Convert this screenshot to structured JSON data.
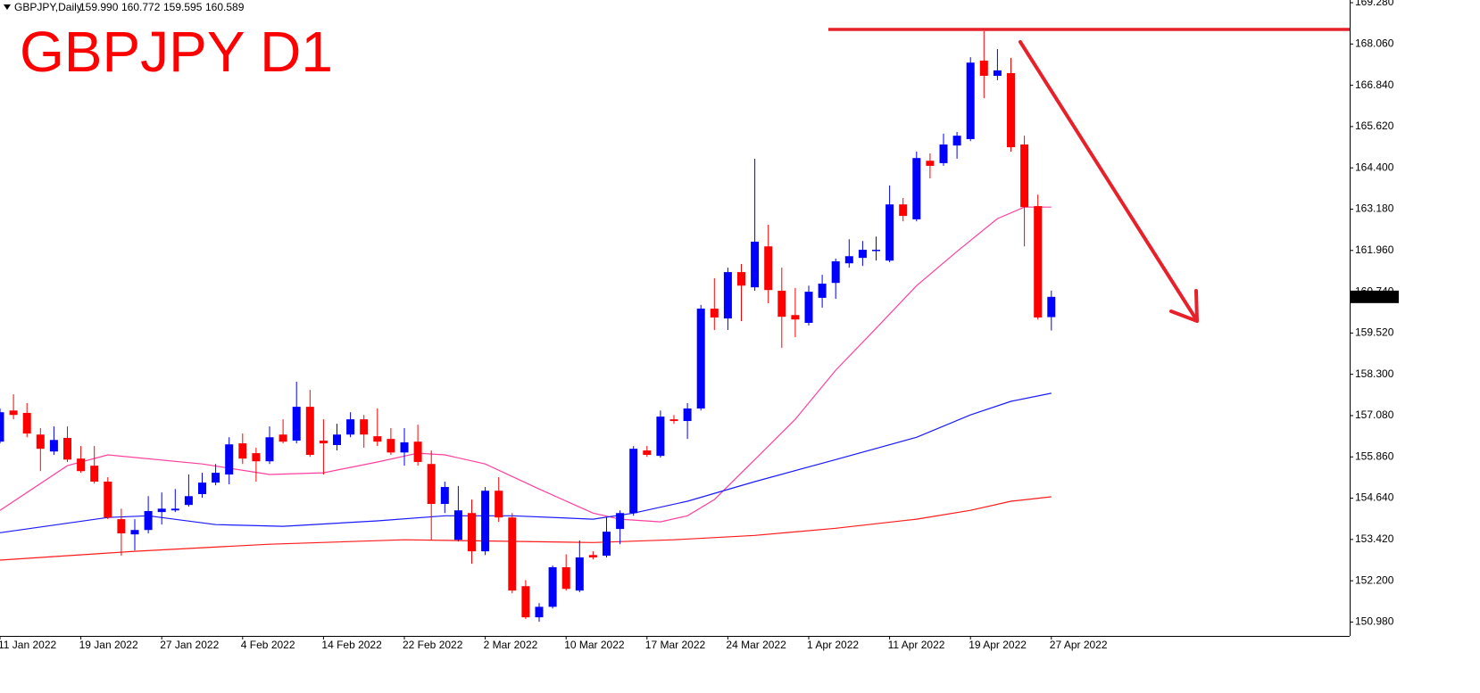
{
  "chart_data": {
    "type": "candlestick",
    "title": "GBPJPY D1",
    "header": {
      "symbol": "GBPJPY,Daily",
      "ohlc": [
        "159.990",
        "160.772",
        "159.595",
        "160.589"
      ]
    },
    "last_price_label": "160.589",
    "up_color": "#0000ff",
    "down_color": "#ff0000",
    "categories": [
      "11 Jan 2022",
      null,
      null,
      null,
      null,
      null,
      "19 Jan 2022",
      null,
      null,
      null,
      null,
      null,
      "27 Jan 2022",
      null,
      null,
      null,
      null,
      null,
      "4 Feb 2022",
      null,
      null,
      null,
      null,
      null,
      "14 Feb 2022",
      null,
      null,
      null,
      null,
      null,
      "22 Feb 2022",
      null,
      null,
      null,
      null,
      null,
      "2 Mar 2022",
      null,
      null,
      null,
      null,
      null,
      "10 Mar 2022",
      null,
      null,
      null,
      null,
      null,
      "17 Mar 2022",
      null,
      null,
      null,
      null,
      null,
      "24 Mar 2022",
      null,
      null,
      null,
      null,
      null,
      "1 Apr 2022",
      null,
      null,
      null,
      null,
      null,
      "11 Apr 2022",
      null,
      null,
      null,
      null,
      null,
      "19 Apr 2022",
      null,
      null,
      null,
      null,
      null,
      "27 Apr 2022"
    ],
    "open": [
      156.31,
      157.23,
      157.16,
      156.52,
      156.02,
      156.42,
      155.81,
      155.6,
      155.13,
      154.02,
      153.57,
      153.7,
      154.23,
      154.28,
      154.44,
      154.76,
      155.1,
      155.34,
      156.26,
      155.97,
      155.73,
      156.52,
      156.34,
      157.34,
      156.34,
      156.21,
      156.52,
      156.97,
      156.47,
      156.39,
      155.99,
      156.31,
      155.65,
      154.47,
      153.41,
      154.2,
      153.07,
      154.86,
      154.07,
      152.04,
      151.12,
      151.43,
      152.6,
      151.91,
      152.96,
      152.94,
      153.73,
      154.2,
      156.05,
      155.89,
      156.97,
      156.92,
      157.29,
      160.24,
      159.95,
      161.32,
      160.87,
      162.08,
      160.77,
      160.05,
      159.82,
      160.56,
      161.0,
      161.58,
      161.74,
      161.95,
      161.66,
      163.32,
      162.88,
      164.61,
      164.54,
      165.06,
      165.25,
      167.57,
      167.12,
      167.2,
      165.09,
      163.27,
      159.99
    ],
    "high": [
      157.29,
      157.71,
      157.45,
      156.71,
      156.76,
      156.76,
      156.18,
      156.18,
      155.26,
      154.33,
      154.02,
      154.7,
      154.81,
      154.91,
      155.34,
      155.39,
      155.65,
      156.44,
      156.55,
      156.13,
      156.76,
      156.97,
      158.08,
      157.84,
      156.97,
      156.84,
      157.18,
      157.1,
      157.29,
      156.71,
      156.71,
      156.81,
      156.05,
      155.13,
      155.0,
      154.6,
      154.97,
      155.26,
      154.2,
      152.22,
      151.54,
      152.65,
      152.98,
      153.39,
      153.07,
      154.07,
      154.28,
      156.18,
      156.18,
      157.23,
      157.1,
      157.45,
      160.35,
      161.14,
      161.45,
      161.56,
      164.67,
      162.72,
      161.45,
      160.85,
      160.92,
      161.24,
      161.72,
      162.29,
      162.24,
      162.37,
      163.88,
      163.51,
      164.88,
      164.83,
      165.41,
      165.46,
      167.67,
      168.44,
      167.91,
      167.65,
      165.35,
      163.61,
      160.772
    ],
    "low": [
      156.26,
      156.97,
      156.44,
      155.44,
      155.92,
      155.71,
      155.39,
      155.07,
      154.02,
      152.94,
      153.1,
      153.6,
      153.86,
      154.23,
      154.39,
      154.65,
      155.02,
      155.05,
      155.65,
      155.13,
      155.65,
      156.26,
      156.26,
      155.86,
      155.34,
      156.05,
      156.44,
      156.13,
      156.18,
      155.92,
      155.6,
      155.6,
      153.39,
      154.2,
      153.36,
      152.7,
      152.96,
      153.94,
      151.83,
      151.07,
      150.99,
      151.38,
      151.91,
      151.86,
      152.83,
      152.89,
      153.28,
      154.12,
      155.86,
      155.84,
      156.84,
      156.39,
      157.23,
      159.61,
      159.61,
      159.87,
      160.77,
      160.4,
      159.08,
      159.4,
      159.74,
      160.27,
      160.53,
      161.45,
      161.5,
      161.66,
      161.61,
      162.82,
      162.82,
      164.09,
      164.46,
      164.67,
      165.19,
      166.46,
      166.99,
      164.88,
      162.08,
      159.92,
      159.595
    ],
    "close": [
      157.18,
      157.1,
      156.55,
      156.1,
      156.36,
      155.78,
      155.44,
      155.13,
      154.07,
      153.6,
      153.7,
      154.26,
      154.33,
      154.33,
      154.7,
      155.1,
      155.39,
      156.23,
      155.81,
      155.73,
      156.44,
      156.31,
      157.34,
      155.92,
      156.26,
      156.52,
      156.97,
      156.52,
      156.31,
      155.99,
      156.29,
      155.71,
      154.47,
      154.97,
      154.28,
      153.07,
      154.86,
      154.07,
      151.91,
      151.12,
      151.43,
      152.6,
      151.96,
      152.89,
      152.89,
      153.65,
      154.2,
      156.1,
      155.92,
      157.05,
      156.92,
      157.29,
      160.24,
      159.98,
      161.32,
      160.92,
      162.22,
      160.79,
      160.0,
      159.92,
      160.74,
      160.98,
      161.64,
      161.79,
      161.98,
      161.98,
      163.32,
      162.98,
      164.69,
      164.46,
      165.09,
      165.35,
      167.51,
      167.12,
      167.28,
      165.01,
      163.24,
      159.98,
      160.589
    ],
    "series": [
      {
        "color": "#ff3fa0",
        "x": [
          0,
          5,
          8,
          15,
          20,
          24,
          28,
          31,
          33,
          36,
          40,
          44,
          46,
          49,
          51,
          53,
          56,
          59,
          62,
          65,
          68,
          71,
          74,
          76,
          78
        ],
        "values": [
          154.28,
          155.6,
          155.92,
          155.65,
          155.34,
          155.39,
          155.71,
          155.97,
          155.92,
          155.65,
          154.91,
          154.2,
          154.02,
          153.94,
          154.12,
          154.6,
          155.78,
          156.97,
          158.42,
          159.66,
          160.92,
          161.93,
          162.9,
          163.24,
          163.24
        ]
      },
      {
        "color": "#1a1aff",
        "x": [
          0,
          8,
          11,
          16,
          21,
          28,
          33,
          38,
          44,
          47,
          51,
          56,
          62,
          68,
          72,
          75,
          78
        ],
        "values": [
          153.62,
          154.07,
          154.12,
          153.86,
          153.81,
          153.97,
          154.12,
          154.12,
          154.02,
          154.2,
          154.55,
          155.13,
          155.78,
          156.44,
          157.1,
          157.5,
          157.74
        ]
      },
      {
        "color": "#ff1a1a",
        "x": [
          0,
          10,
          20,
          30,
          44,
          50,
          56,
          62,
          68,
          72,
          75,
          78
        ],
        "values": [
          152.81,
          153.07,
          153.28,
          153.41,
          153.33,
          153.41,
          153.54,
          153.75,
          154.02,
          154.28,
          154.55,
          154.68
        ]
      }
    ],
    "resistance_level": 168.49,
    "ylim": [
      150.57,
      169.36
    ],
    "yticks": [
      {
        "value": 169.28,
        "label": "169.280"
      },
      {
        "value": 168.06,
        "label": "168.060"
      },
      {
        "value": 166.84,
        "label": "166.840"
      },
      {
        "value": 165.62,
        "label": "165.620"
      },
      {
        "value": 164.4,
        "label": "164.400"
      },
      {
        "value": 163.18,
        "label": "163.180"
      },
      {
        "value": 161.96,
        "label": "161.960"
      },
      {
        "value": 160.74,
        "label": "160.740"
      },
      {
        "value": 159.52,
        "label": "159.520"
      },
      {
        "value": 158.3,
        "label": "158.300"
      },
      {
        "value": 157.08,
        "label": "157.080"
      },
      {
        "value": 155.86,
        "label": "155.860"
      },
      {
        "value": 154.64,
        "label": "154.640"
      },
      {
        "value": 153.42,
        "label": "153.420"
      },
      {
        "value": 152.2,
        "label": "152.200"
      },
      {
        "value": 150.98,
        "label": "150.980"
      }
    ]
  }
}
